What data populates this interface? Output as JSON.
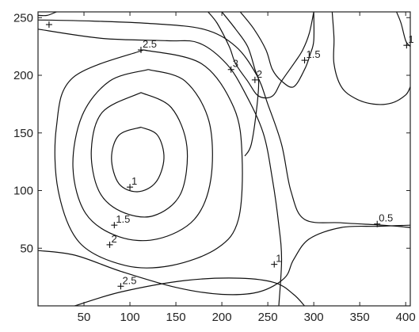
{
  "chart_data": {
    "type": "contour",
    "title": "",
    "xlabel": "",
    "ylabel": "",
    "xlim": [
      0,
      405
    ],
    "ylim": [
      0,
      255
    ],
    "xticks": [
      50,
      100,
      150,
      200,
      250,
      300,
      350,
      400
    ],
    "yticks": [
      50,
      100,
      150,
      200,
      250
    ],
    "grid": false,
    "levels": [
      0.5,
      1,
      1.5,
      2,
      2.5,
      3
    ],
    "contours": [
      {
        "level": "inner-ring",
        "points": [
          [
            112,
            155
          ],
          [
            130,
            148
          ],
          [
            137,
            128
          ],
          [
            128,
            107
          ],
          [
            108,
            99
          ],
          [
            88,
            106
          ],
          [
            80,
            128
          ],
          [
            88,
            148
          ],
          [
            112,
            155
          ]
        ]
      },
      {
        "level": "ring-2",
        "points": [
          [
            112,
            185
          ],
          [
            145,
            172
          ],
          [
            162,
            138
          ],
          [
            155,
            97
          ],
          [
            125,
            78
          ],
          [
            90,
            82
          ],
          [
            66,
            100
          ],
          [
            58,
            135
          ],
          [
            70,
            168
          ],
          [
            112,
            185
          ]
        ]
      },
      {
        "level": "ring-3",
        "points": [
          [
            120,
            205
          ],
          [
            160,
            195
          ],
          [
            186,
            160
          ],
          [
            188,
            110
          ],
          [
            170,
            75
          ],
          [
            130,
            58
          ],
          [
            88,
            60
          ],
          [
            52,
            80
          ],
          [
            38,
            120
          ],
          [
            48,
            165
          ],
          [
            78,
            195
          ],
          [
            120,
            205
          ]
        ]
      },
      {
        "level": "ring-4",
        "points": [
          [
            115,
            222
          ],
          [
            178,
            210
          ],
          [
            213,
            172
          ],
          [
            222,
            130
          ],
          [
            218,
            75
          ],
          [
            195,
            50
          ],
          [
            145,
            35
          ],
          [
            95,
            35
          ],
          [
            45,
            55
          ],
          [
            22,
            100
          ],
          [
            20,
            155
          ],
          [
            38,
            198
          ],
          [
            115,
            222
          ]
        ]
      },
      {
        "level": "top-curve",
        "points": [
          [
            0,
            240
          ],
          [
            70,
            232
          ],
          [
            140,
            230
          ],
          [
            175,
            228
          ],
          [
            205,
            210
          ],
          [
            225,
            185
          ],
          [
            245,
            150
          ],
          [
            255,
            110
          ],
          [
            262,
            70
          ],
          [
            265,
            40
          ],
          [
            262,
            0
          ]
        ]
      },
      {
        "level": "top-curve-2",
        "points": [
          [
            0,
            248
          ],
          [
            60,
            247
          ],
          [
            120,
            245
          ],
          [
            180,
            240
          ],
          [
            215,
            225
          ],
          [
            238,
            200
          ],
          [
            250,
            175
          ],
          [
            265,
            140
          ],
          [
            275,
            100
          ],
          [
            290,
            75
          ],
          [
            330,
            72
          ],
          [
            375,
            70
          ],
          [
            405,
            68
          ]
        ]
      },
      {
        "level": "left-bottom",
        "points": [
          [
            0,
            48
          ],
          [
            40,
            44
          ],
          [
            90,
            30
          ],
          [
            150,
            16
          ],
          [
            200,
            10
          ],
          [
            240,
            12
          ],
          [
            268,
            24
          ],
          [
            278,
            40
          ],
          [
            295,
            58
          ],
          [
            330,
            68
          ],
          [
            370,
            69
          ],
          [
            405,
            70
          ]
        ]
      },
      {
        "level": "bottom",
        "points": [
          [
            40,
            0
          ],
          [
            90,
            12
          ],
          [
            160,
            22
          ],
          [
            220,
            24
          ],
          [
            258,
            20
          ],
          [
            278,
            10
          ],
          [
            290,
            0
          ]
        ]
      },
      {
        "level": "ridge-a",
        "points": [
          [
            185,
            255
          ],
          [
            195,
            245
          ],
          [
            208,
            225
          ],
          [
            215,
            210
          ],
          [
            228,
            195
          ],
          [
            240,
            182
          ],
          [
            255,
            182
          ],
          [
            265,
            195
          ],
          [
            280,
            212
          ],
          [
            288,
            222
          ],
          [
            295,
            236
          ],
          [
            300,
            255
          ]
        ]
      },
      {
        "level": "ridge-b",
        "points": [
          [
            200,
            255
          ],
          [
            215,
            240
          ],
          [
            228,
            225
          ],
          [
            236,
            205
          ],
          [
            240,
            195
          ],
          [
            238,
            172
          ],
          [
            232,
            140
          ],
          [
            225,
            130
          ]
        ]
      },
      {
        "level": "ridge-c",
        "points": [
          [
            220,
            255
          ],
          [
            235,
            240
          ],
          [
            248,
            222
          ],
          [
            255,
            205
          ],
          [
            265,
            195
          ],
          [
            278,
            190
          ],
          [
            290,
            205
          ],
          [
            296,
            218
          ],
          [
            300,
            230
          ],
          [
            300,
            255
          ]
        ]
      },
      {
        "level": "right-loop",
        "points": [
          [
            320,
            255
          ],
          [
            322,
            232
          ],
          [
            322,
            210
          ],
          [
            330,
            190
          ],
          [
            345,
            180
          ],
          [
            365,
            175
          ],
          [
            385,
            176
          ],
          [
            400,
            183
          ],
          [
            405,
            190
          ]
        ]
      },
      {
        "level": "right-upper",
        "points": [
          [
            390,
            255
          ],
          [
            395,
            245
          ],
          [
            400,
            230
          ],
          [
            405,
            225
          ]
        ]
      },
      {
        "level": "top-left-corner",
        "points": [
          [
            0,
            252
          ],
          [
            10,
            252
          ],
          [
            20,
            255
          ]
        ]
      }
    ],
    "labels": [
      {
        "text": "2.5",
        "x": 112,
        "y": 222
      },
      {
        "text": "3",
        "x": 210,
        "y": 205
      },
      {
        "text": "2",
        "x": 236,
        "y": 196
      },
      {
        "text": "1.5",
        "x": 290,
        "y": 213
      },
      {
        "text": "1",
        "x": 401,
        "y": 226
      },
      {
        "text": "1",
        "x": 100,
        "y": 103
      },
      {
        "text": "1.5",
        "x": 83,
        "y": 70
      },
      {
        "text": "2",
        "x": 78,
        "y": 53
      },
      {
        "text": "2.5",
        "x": 90,
        "y": 17
      },
      {
        "text": "1",
        "x": 257,
        "y": 36
      },
      {
        "text": "0.5",
        "x": 369,
        "y": 71
      }
    ],
    "markers": [
      [
        12,
        244
      ],
      [
        112,
        222
      ],
      [
        210,
        205
      ],
      [
        236,
        196
      ],
      [
        290,
        213
      ],
      [
        401,
        226
      ],
      [
        100,
        103
      ],
      [
        83,
        70
      ],
      [
        78,
        53
      ],
      [
        90,
        17
      ],
      [
        257,
        36
      ],
      [
        369,
        71
      ]
    ]
  }
}
